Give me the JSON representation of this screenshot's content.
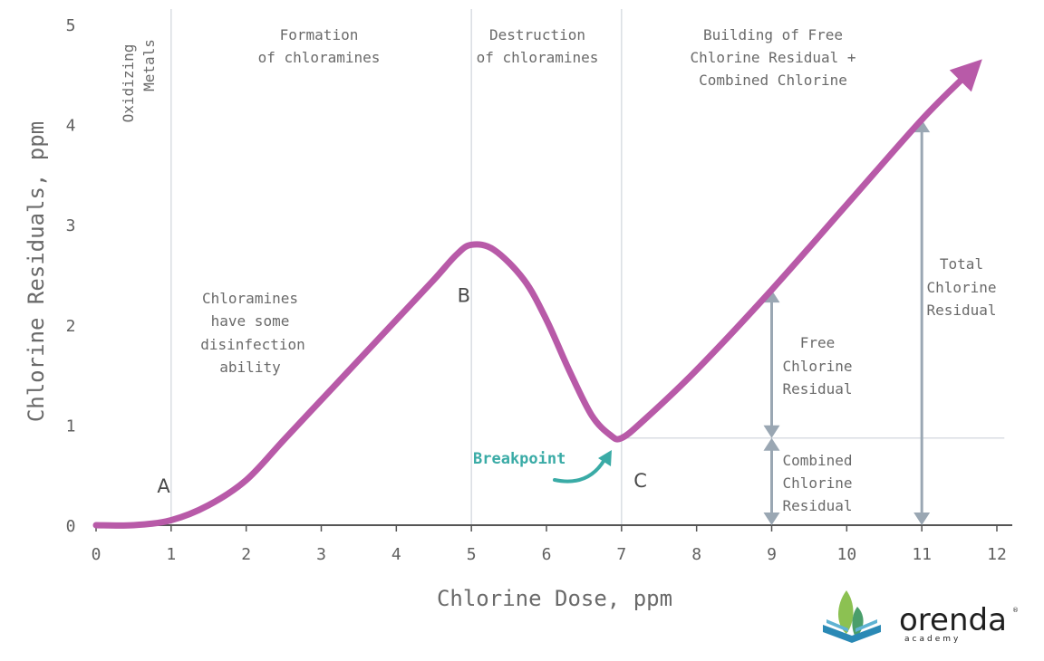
{
  "chart_data": {
    "type": "line",
    "xlabel": "Chlorine Dose, ppm",
    "ylabel": "Chlorine Residuals, ppm",
    "xlim": [
      0,
      12
    ],
    "ylim": [
      0,
      5
    ],
    "x_ticks": [
      "0",
      "1",
      "2",
      "3",
      "4",
      "5",
      "6",
      "7",
      "8",
      "9",
      "10",
      "11",
      "12"
    ],
    "y_ticks": [
      "0",
      "1",
      "2",
      "3",
      "4",
      "5"
    ],
    "grid": "vertical lines at x = 1, 5, 7",
    "series": [
      {
        "color": "#b85aa8",
        "points": [
          [
            0,
            0.0
          ],
          [
            0.5,
            0.0
          ],
          [
            1,
            0.05
          ],
          [
            1.5,
            0.2
          ],
          [
            2,
            0.45
          ],
          [
            2.5,
            0.85
          ],
          [
            3,
            1.25
          ],
          [
            3.5,
            1.65
          ],
          [
            4,
            2.05
          ],
          [
            4.5,
            2.45
          ],
          [
            4.8,
            2.7
          ],
          [
            5,
            2.8
          ],
          [
            5.3,
            2.75
          ],
          [
            5.7,
            2.45
          ],
          [
            6,
            2.05
          ],
          [
            6.3,
            1.55
          ],
          [
            6.6,
            1.1
          ],
          [
            6.85,
            0.9
          ],
          [
            7,
            0.87
          ],
          [
            7.3,
            1.05
          ],
          [
            8,
            1.55
          ],
          [
            9,
            2.35
          ],
          [
            10,
            3.2
          ],
          [
            11,
            4.05
          ],
          [
            11.6,
            4.5
          ]
        ]
      }
    ],
    "points_labels": [
      {
        "label": "A",
        "x": 0.9,
        "y": 0.4
      },
      {
        "label": "B",
        "x": 4.9,
        "y": 2.3
      },
      {
        "label": "C",
        "x": 7.25,
        "y": 0.45
      }
    ],
    "regions": [
      {
        "label": [
          "Oxidizing",
          "Metals"
        ]
      },
      {
        "label": [
          "Formation",
          "of chloramines"
        ]
      },
      {
        "label": [
          "Destruction",
          "of chloramines"
        ]
      },
      {
        "label": [
          "Building of Free",
          "Chlorine Residual +",
          "Combined Chlorine"
        ]
      }
    ],
    "annotations": [
      {
        "text": [
          "Chloramines",
          "have some",
          "disinfection",
          "ability"
        ]
      },
      {
        "text": [
          "Breakpoint"
        ],
        "color": "#3aaba6"
      },
      {
        "text": [
          "Free",
          "Chlorine",
          "Residual"
        ]
      },
      {
        "text": [
          "Combined",
          "Chlorine",
          "Residual"
        ]
      },
      {
        "text": [
          "Total",
          "Chlorine",
          "Residual"
        ]
      }
    ],
    "measurements": [
      {
        "name": "Free Chlorine Residual",
        "x": 9,
        "from": 0.87,
        "to": 2.35
      },
      {
        "name": "Combined Chlorine Residual",
        "x": 9,
        "from": 0.0,
        "to": 0.87
      },
      {
        "name": "Total Chlorine Residual",
        "x": 11,
        "from": 0.0,
        "to": 4.05
      }
    ]
  },
  "logo": {
    "name": "orenda",
    "sub": "academy",
    "mark": "®",
    "icon": "book-leaf-icon"
  },
  "colors": {
    "curve": "#b85aa8",
    "breakpoint": "#3aaba6",
    "measure": "#9aa7b3",
    "grid": "#d9dde3",
    "axis": "#555555"
  }
}
